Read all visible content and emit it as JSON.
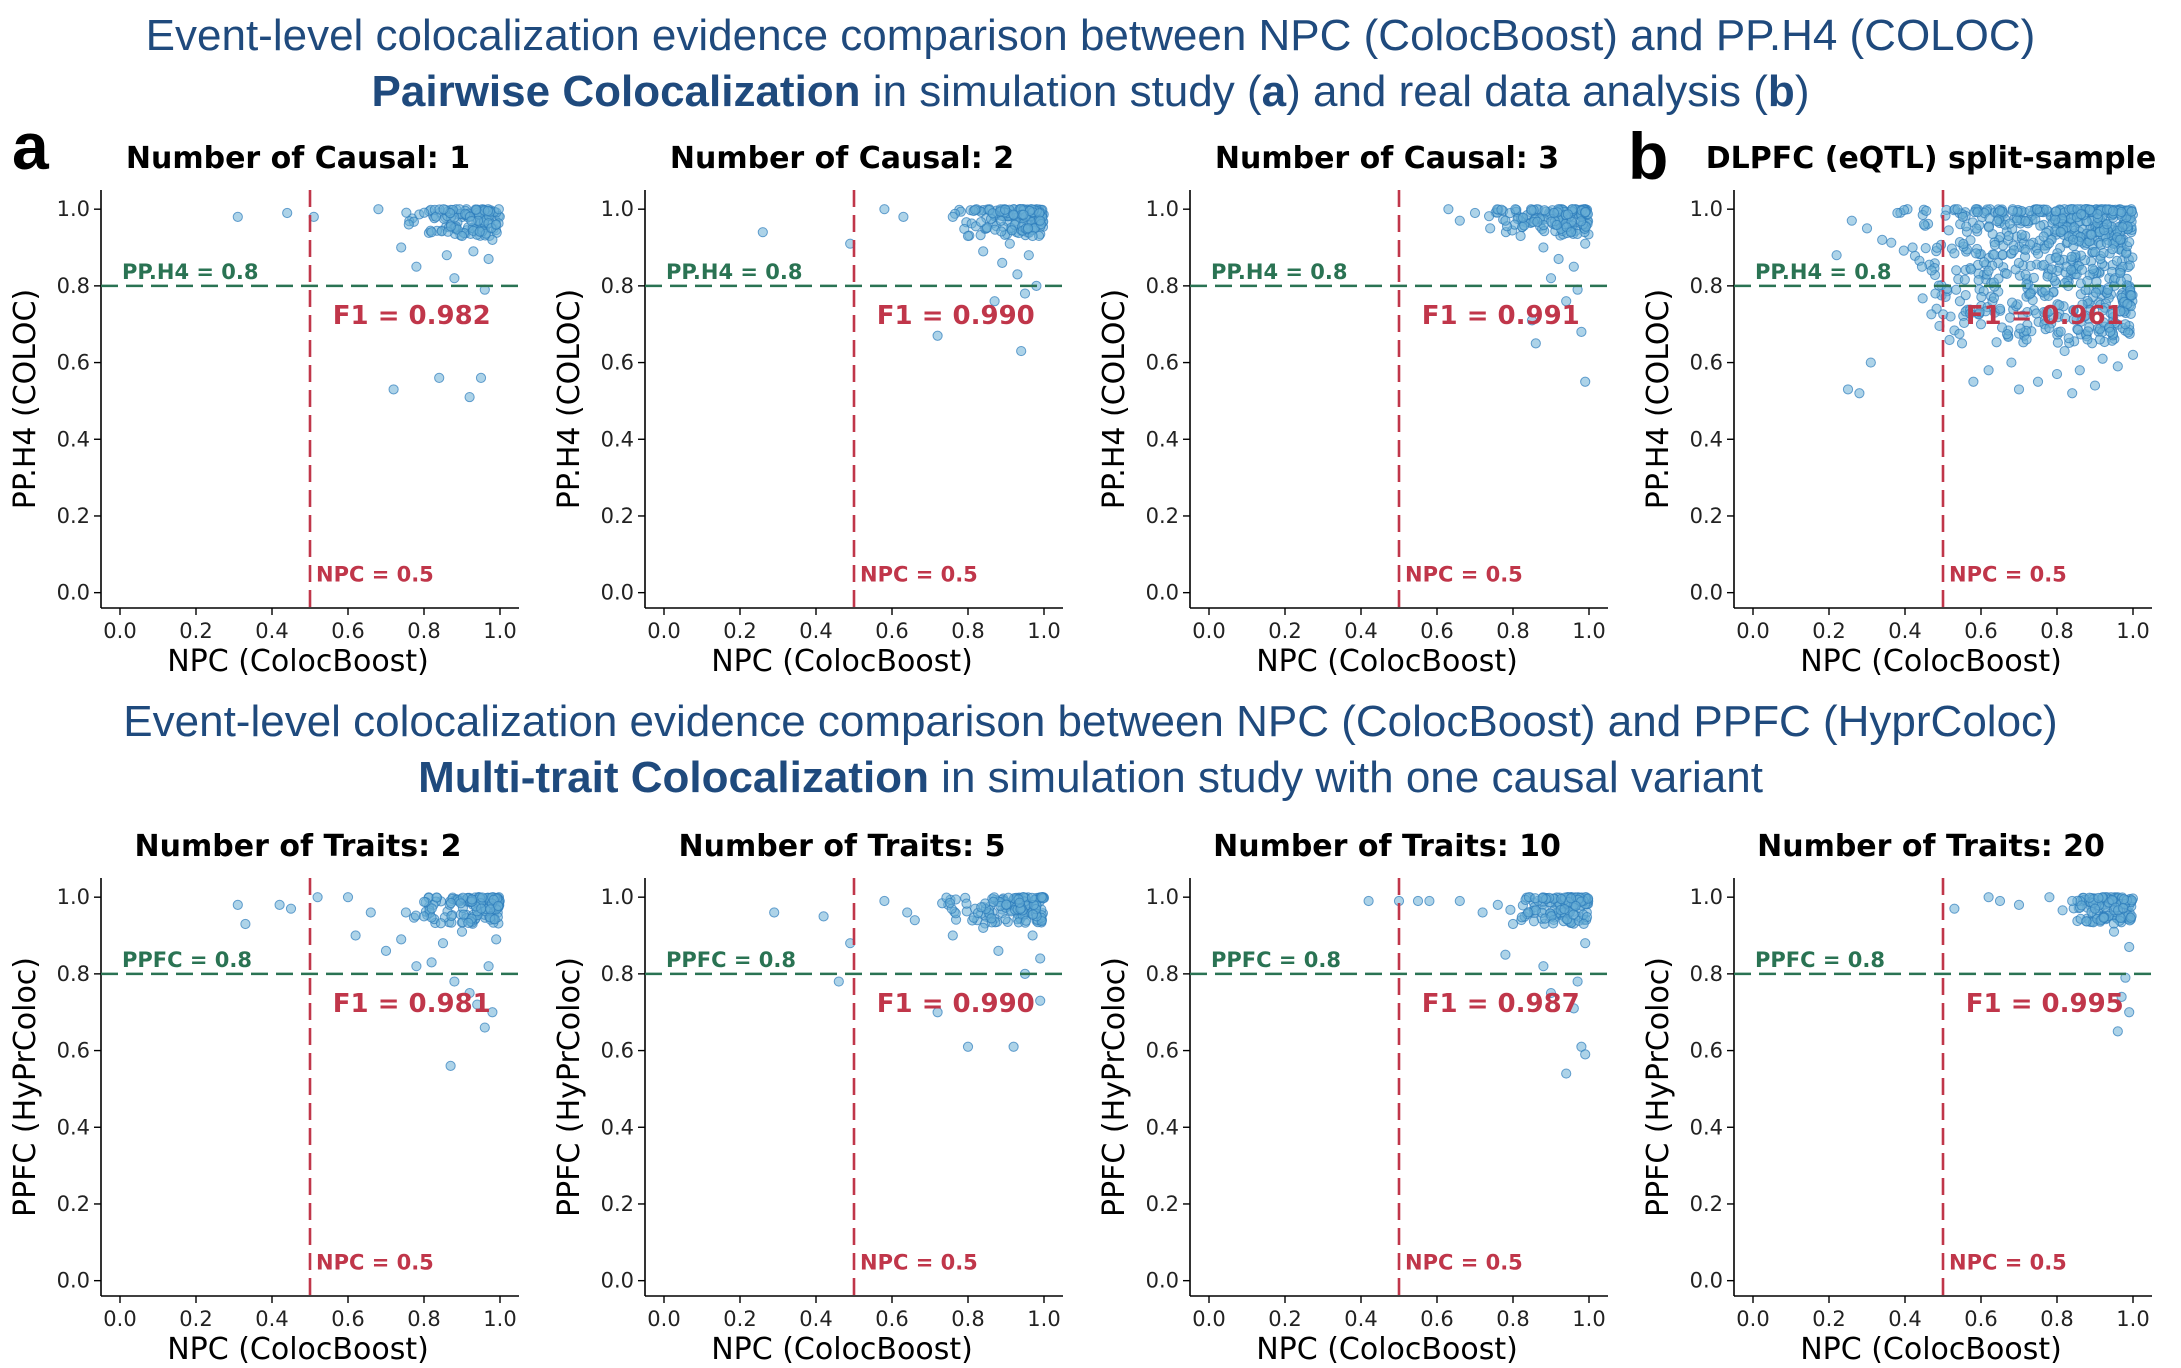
{
  "header_top": {
    "line1": "Event-level colocalization evidence comparison between NPC (ColocBoost) and PP.H4 (COLOC)",
    "line2_bold": "Pairwise Colocalization",
    "line2_rest_a": " in simulation study (",
    "line2_a": "a",
    "line2_rest_b": ") and real data analysis (",
    "line2_b": "b",
    "line2_end": ")"
  },
  "header_bottom": {
    "line1": "Event-level colocalization evidence comparison between NPC (ColocBoost) and PPFC (HyprColoc)",
    "line2_bold": "Multi-trait Colocalization",
    "line2_rest": " in simulation study with one causal variant"
  },
  "panel_letters": [
    "a",
    "b"
  ],
  "colors": {
    "point": "#6aaed6",
    "point_edge": "#2b7bba",
    "threshold_h": "#2a7353",
    "threshold_v": "#c0364a"
  },
  "chart_data": [
    {
      "type": "scatter",
      "title": "Number of Causal: 1",
      "xlabel": "NPC (ColocBoost)",
      "ylabel": "PP.H4 (COLOC)",
      "xlim": [
        -0.05,
        1.05
      ],
      "ylim": [
        -0.04,
        1.05
      ],
      "xticks": [
        "0.0",
        "0.2",
        "0.4",
        "0.6",
        "0.8",
        "1.0"
      ],
      "yticks": [
        "0.0",
        "0.2",
        "0.4",
        "0.6",
        "0.8",
        "1.0"
      ],
      "hline": {
        "y": 0.8,
        "label": "PP.H4 = 0.8"
      },
      "vline": {
        "x": 0.5,
        "label": "NPC = 0.5"
      },
      "f1_label": "F1 = 0.982",
      "points": [
        [
          0.31,
          0.98
        ],
        [
          0.44,
          0.99
        ],
        [
          0.51,
          0.98
        ],
        [
          0.68,
          1.0
        ],
        [
          0.72,
          0.53
        ],
        [
          0.74,
          0.9
        ],
        [
          0.76,
          0.96
        ],
        [
          0.78,
          0.85
        ],
        [
          0.82,
          0.94
        ],
        [
          0.84,
          0.56
        ],
        [
          0.86,
          0.88
        ],
        [
          0.88,
          0.82
        ],
        [
          0.9,
          0.93
        ],
        [
          0.92,
          0.51
        ],
        [
          0.93,
          0.89
        ],
        [
          0.95,
          0.56
        ],
        [
          0.96,
          0.79
        ],
        [
          0.97,
          0.87
        ],
        [
          0.98,
          0.92
        ],
        [
          0.99,
          0.96
        ]
      ],
      "dense": {
        "x": [
          0.72,
          1.0
        ],
        "y": [
          0.93,
          1.0
        ],
        "n": 140
      }
    },
    {
      "type": "scatter",
      "title": "Number of Causal: 2",
      "xlabel": "NPC (ColocBoost)",
      "ylabel": "PP.H4 (COLOC)",
      "xlim": [
        -0.05,
        1.05
      ],
      "ylim": [
        -0.04,
        1.05
      ],
      "xticks": [
        "0.0",
        "0.2",
        "0.4",
        "0.6",
        "0.8",
        "1.0"
      ],
      "yticks": [
        "0.0",
        "0.2",
        "0.4",
        "0.6",
        "0.8",
        "1.0"
      ],
      "hline": {
        "y": 0.8,
        "label": "PP.H4 = 0.8"
      },
      "vline": {
        "x": 0.5,
        "label": "NPC = 0.5"
      },
      "f1_label": "F1 = 0.990",
      "points": [
        [
          0.26,
          0.94
        ],
        [
          0.49,
          0.91
        ],
        [
          0.58,
          1.0
        ],
        [
          0.63,
          0.98
        ],
        [
          0.72,
          0.67
        ],
        [
          0.76,
          0.98
        ],
        [
          0.8,
          0.93
        ],
        [
          0.84,
          0.89
        ],
        [
          0.87,
          0.76
        ],
        [
          0.89,
          0.86
        ],
        [
          0.91,
          0.91
        ],
        [
          0.93,
          0.83
        ],
        [
          0.94,
          0.63
        ],
        [
          0.95,
          0.78
        ],
        [
          0.96,
          0.88
        ],
        [
          0.97,
          0.93
        ],
        [
          0.98,
          0.8
        ],
        [
          0.99,
          0.97
        ]
      ],
      "dense": {
        "x": [
          0.74,
          1.0
        ],
        "y": [
          0.93,
          1.0
        ],
        "n": 150
      }
    },
    {
      "type": "scatter",
      "title": "Number of Causal: 3",
      "xlabel": "NPC (ColocBoost)",
      "ylabel": "PP.H4 (COLOC)",
      "xlim": [
        -0.05,
        1.05
      ],
      "ylim": [
        -0.04,
        1.05
      ],
      "xticks": [
        "0.0",
        "0.2",
        "0.4",
        "0.6",
        "0.8",
        "1.0"
      ],
      "yticks": [
        "0.0",
        "0.2",
        "0.4",
        "0.6",
        "0.8",
        "1.0"
      ],
      "hline": {
        "y": 0.8,
        "label": "PP.H4 = 0.8"
      },
      "vline": {
        "x": 0.5,
        "label": "NPC = 0.5"
      },
      "f1_label": "F1 = 0.991",
      "points": [
        [
          0.63,
          1.0
        ],
        [
          0.66,
          0.97
        ],
        [
          0.7,
          0.99
        ],
        [
          0.74,
          0.95
        ],
        [
          0.78,
          0.97
        ],
        [
          0.82,
          0.93
        ],
        [
          0.85,
          0.71
        ],
        [
          0.86,
          0.65
        ],
        [
          0.88,
          0.9
        ],
        [
          0.9,
          0.82
        ],
        [
          0.92,
          0.87
        ],
        [
          0.94,
          0.76
        ],
        [
          0.96,
          0.85
        ],
        [
          0.97,
          0.79
        ],
        [
          0.98,
          0.68
        ],
        [
          0.99,
          0.55
        ],
        [
          0.99,
          0.91
        ]
      ],
      "dense": {
        "x": [
          0.72,
          1.0
        ],
        "y": [
          0.93,
          1.0
        ],
        "n": 150
      }
    },
    {
      "type": "scatter",
      "title": "DLPFC (eQTL) split-sample",
      "xlabel": "NPC (ColocBoost)",
      "ylabel": "PP.H4 (COLOC)",
      "xlim": [
        -0.05,
        1.05
      ],
      "ylim": [
        -0.04,
        1.05
      ],
      "xticks": [
        "0.0",
        "0.2",
        "0.4",
        "0.6",
        "0.8",
        "1.0"
      ],
      "yticks": [
        "0.0",
        "0.2",
        "0.4",
        "0.6",
        "0.8",
        "1.0"
      ],
      "hline": {
        "y": 0.8,
        "label": "PP.H4 = 0.8"
      },
      "vline": {
        "x": 0.5,
        "label": "NPC = 0.5"
      },
      "f1_label": "F1 = 0.961",
      "points": [
        [
          0.22,
          0.88
        ],
        [
          0.25,
          0.53
        ],
        [
          0.28,
          0.52
        ],
        [
          0.31,
          0.6
        ],
        [
          0.26,
          0.97
        ],
        [
          0.3,
          0.95
        ],
        [
          0.34,
          0.92
        ],
        [
          0.38,
          0.99
        ],
        [
          0.42,
          0.9
        ],
        [
          0.45,
          0.96
        ],
        [
          0.48,
          0.78
        ],
        [
          0.47,
          0.84
        ],
        [
          0.52,
          0.72
        ],
        [
          0.55,
          0.65
        ],
        [
          0.58,
          0.55
        ],
        [
          0.6,
          0.7
        ],
        [
          0.62,
          0.58
        ],
        [
          0.65,
          0.74
        ],
        [
          0.68,
          0.6
        ],
        [
          0.7,
          0.53
        ],
        [
          0.72,
          0.66
        ],
        [
          0.75,
          0.55
        ],
        [
          0.78,
          0.69
        ],
        [
          0.8,
          0.57
        ],
        [
          0.82,
          0.63
        ],
        [
          0.84,
          0.52
        ],
        [
          0.86,
          0.58
        ],
        [
          0.88,
          0.66
        ],
        [
          0.9,
          0.54
        ],
        [
          0.92,
          0.61
        ],
        [
          0.94,
          0.68
        ],
        [
          0.96,
          0.59
        ],
        [
          0.98,
          0.7
        ],
        [
          1.0,
          0.62
        ]
      ],
      "dense": {
        "x": [
          0.35,
          1.0
        ],
        "y": [
          0.65,
          1.0
        ],
        "n": 700
      }
    },
    {
      "type": "scatter",
      "title": "Number of Traits: 2",
      "xlabel": "NPC (ColocBoost)",
      "ylabel": "PPFC (HyPrColoc)",
      "xlim": [
        -0.05,
        1.05
      ],
      "ylim": [
        -0.04,
        1.05
      ],
      "xticks": [
        "0.0",
        "0.2",
        "0.4",
        "0.6",
        "0.8",
        "1.0"
      ],
      "yticks": [
        "0.0",
        "0.2",
        "0.4",
        "0.6",
        "0.8",
        "1.0"
      ],
      "hline": {
        "y": 0.8,
        "label": "PPFC = 0.8"
      },
      "vline": {
        "x": 0.5,
        "label": "NPC = 0.5"
      },
      "f1_label": "F1 = 0.981",
      "points": [
        [
          0.31,
          0.98
        ],
        [
          0.33,
          0.93
        ],
        [
          0.42,
          0.98
        ],
        [
          0.45,
          0.97
        ],
        [
          0.52,
          1.0
        ],
        [
          0.6,
          1.0
        ],
        [
          0.62,
          0.9
        ],
        [
          0.66,
          0.96
        ],
        [
          0.7,
          0.86
        ],
        [
          0.74,
          0.89
        ],
        [
          0.78,
          0.82
        ],
        [
          0.8,
          0.95
        ],
        [
          0.82,
          0.83
        ],
        [
          0.85,
          0.88
        ],
        [
          0.87,
          0.56
        ],
        [
          0.88,
          0.78
        ],
        [
          0.9,
          0.91
        ],
        [
          0.92,
          0.75
        ],
        [
          0.94,
          0.72
        ],
        [
          0.96,
          0.66
        ],
        [
          0.97,
          0.82
        ],
        [
          0.98,
          0.7
        ],
        [
          0.99,
          0.89
        ]
      ],
      "dense": {
        "x": [
          0.72,
          1.0
        ],
        "y": [
          0.93,
          1.0
        ],
        "n": 140
      }
    },
    {
      "type": "scatter",
      "title": "Number of Traits: 5",
      "xlabel": "NPC (ColocBoost)",
      "ylabel": "PPFC (HyPrColoc)",
      "xlim": [
        -0.05,
        1.05
      ],
      "ylim": [
        -0.04,
        1.05
      ],
      "xticks": [
        "0.0",
        "0.2",
        "0.4",
        "0.6",
        "0.8",
        "1.0"
      ],
      "yticks": [
        "0.0",
        "0.2",
        "0.4",
        "0.6",
        "0.8",
        "1.0"
      ],
      "hline": {
        "y": 0.8,
        "label": "PPFC = 0.8"
      },
      "vline": {
        "x": 0.5,
        "label": "NPC = 0.5"
      },
      "f1_label": "F1 = 0.990",
      "points": [
        [
          0.29,
          0.96
        ],
        [
          0.42,
          0.95
        ],
        [
          0.46,
          0.78
        ],
        [
          0.49,
          0.88
        ],
        [
          0.58,
          0.99
        ],
        [
          0.64,
          0.96
        ],
        [
          0.66,
          0.94
        ],
        [
          0.72,
          0.7
        ],
        [
          0.76,
          0.9
        ],
        [
          0.8,
          0.61
        ],
        [
          0.84,
          0.92
        ],
        [
          0.88,
          0.86
        ],
        [
          0.92,
          0.61
        ],
        [
          0.95,
          0.8
        ],
        [
          0.97,
          0.9
        ],
        [
          0.99,
          0.73
        ],
        [
          0.99,
          0.84
        ]
      ],
      "dense": {
        "x": [
          0.7,
          1.0
        ],
        "y": [
          0.93,
          1.0
        ],
        "n": 140
      }
    },
    {
      "type": "scatter",
      "title": "Number of Traits: 10",
      "xlabel": "NPC (ColocBoost)",
      "ylabel": "PPFC (HyPrColoc)",
      "xlim": [
        -0.05,
        1.05
      ],
      "ylim": [
        -0.04,
        1.05
      ],
      "xticks": [
        "0.0",
        "0.2",
        "0.4",
        "0.6",
        "0.8",
        "1.0"
      ],
      "yticks": [
        "0.0",
        "0.2",
        "0.4",
        "0.6",
        "0.8",
        "1.0"
      ],
      "hline": {
        "y": 0.8,
        "label": "PPFC = 0.8"
      },
      "vline": {
        "x": 0.5,
        "label": "NPC = 0.5"
      },
      "f1_label": "F1 = 0.987",
      "points": [
        [
          0.42,
          0.99
        ],
        [
          0.5,
          0.99
        ],
        [
          0.55,
          0.99
        ],
        [
          0.58,
          0.99
        ],
        [
          0.66,
          0.99
        ],
        [
          0.72,
          0.96
        ],
        [
          0.76,
          0.98
        ],
        [
          0.78,
          0.85
        ],
        [
          0.8,
          0.93
        ],
        [
          0.84,
          0.96
        ],
        [
          0.88,
          0.82
        ],
        [
          0.9,
          0.75
        ],
        [
          0.94,
          0.54
        ],
        [
          0.96,
          0.71
        ],
        [
          0.97,
          0.78
        ],
        [
          0.98,
          0.61
        ],
        [
          0.99,
          0.59
        ],
        [
          0.99,
          0.88
        ]
      ],
      "dense": {
        "x": [
          0.78,
          1.0
        ],
        "y": [
          0.93,
          1.0
        ],
        "n": 130
      }
    },
    {
      "type": "scatter",
      "title": "Number of Traits: 20",
      "xlabel": "NPC (ColocBoost)",
      "ylabel": "PPFC (HyPrColoc)",
      "xlim": [
        -0.05,
        1.05
      ],
      "ylim": [
        -0.04,
        1.05
      ],
      "xticks": [
        "0.0",
        "0.2",
        "0.4",
        "0.6",
        "0.8",
        "1.0"
      ],
      "yticks": [
        "0.0",
        "0.2",
        "0.4",
        "0.6",
        "0.8",
        "1.0"
      ],
      "hline": {
        "y": 0.8,
        "label": "PPFC = 0.8"
      },
      "vline": {
        "x": 0.5,
        "label": "NPC = 0.5"
      },
      "f1_label": "F1 = 0.995",
      "points": [
        [
          0.53,
          0.97
        ],
        [
          0.62,
          1.0
        ],
        [
          0.65,
          0.99
        ],
        [
          0.7,
          0.98
        ],
        [
          0.78,
          1.0
        ],
        [
          0.84,
          0.99
        ],
        [
          0.9,
          0.97
        ],
        [
          0.95,
          0.91
        ],
        [
          0.96,
          0.65
        ],
        [
          0.97,
          0.74
        ],
        [
          0.98,
          0.79
        ],
        [
          0.99,
          0.7
        ],
        [
          0.99,
          0.87
        ]
      ],
      "dense": {
        "x": [
          0.8,
          1.0
        ],
        "y": [
          0.93,
          1.0
        ],
        "n": 120
      }
    }
  ]
}
